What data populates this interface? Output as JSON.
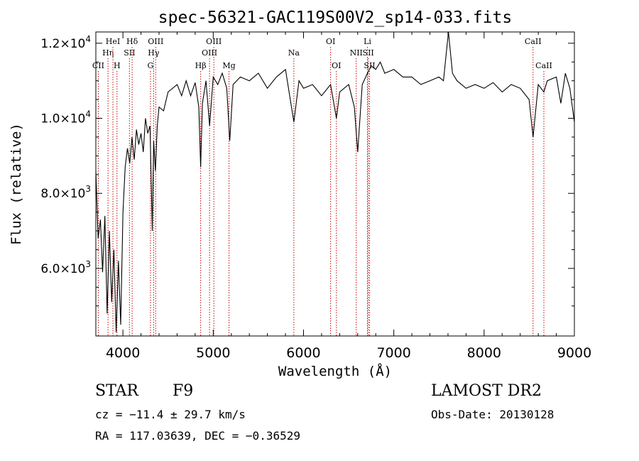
{
  "chart_data": {
    "type": "line",
    "title": "spec-56321-GAC119S00V2_sp14-033.fits",
    "xlabel": "Wavelength (Å)",
    "ylabel": "Flux (relative)",
    "xlim": [
      3700,
      9000
    ],
    "ylim": [
      4200,
      12300
    ],
    "x_ticks": [
      4000,
      5000,
      6000,
      7000,
      8000,
      9000
    ],
    "y_ticks": [
      {
        "value": 6000,
        "mantissa": "6.0",
        "exp": "3"
      },
      {
        "value": 8000,
        "mantissa": "8.0",
        "exp": "3"
      },
      {
        "value": 10000,
        "mantissa": "1.0",
        "exp": "4"
      },
      {
        "value": 12000,
        "mantissa": "1.2",
        "exp": "4"
      }
    ],
    "line_color": "#000000",
    "marker_color": "#c00000",
    "grid": false,
    "spectrum": {
      "x": [
        3700,
        3725,
        3750,
        3775,
        3800,
        3825,
        3850,
        3875,
        3900,
        3925,
        3950,
        3975,
        4000,
        4025,
        4050,
        4075,
        4100,
        4125,
        4150,
        4175,
        4200,
        4225,
        4250,
        4275,
        4300,
        4325,
        4340,
        4360,
        4380,
        4400,
        4450,
        4500,
        4550,
        4600,
        4650,
        4700,
        4750,
        4800,
        4840,
        4861,
        4880,
        4920,
        4960,
        5000,
        5050,
        5100,
        5150,
        5183,
        5220,
        5300,
        5400,
        5500,
        5600,
        5700,
        5800,
        5893,
        5950,
        6000,
        6100,
        6200,
        6300,
        6364,
        6400,
        6500,
        6563,
        6600,
        6650,
        6708,
        6750,
        6800,
        6850,
        6900,
        7000,
        7100,
        7200,
        7300,
        7400,
        7500,
        7550,
        7605,
        7650,
        7700,
        7800,
        7900,
        8000,
        8100,
        8200,
        8300,
        8400,
        8498,
        8542,
        8600,
        8662,
        8700,
        8800,
        8850,
        8900,
        8950,
        9000
      ],
      "y": [
        8600,
        6800,
        7300,
        5900,
        7400,
        4800,
        7000,
        5100,
        6500,
        4300,
        6200,
        4500,
        7500,
        8700,
        9200,
        8800,
        9500,
        8900,
        9700,
        9300,
        9600,
        9100,
        10000,
        9600,
        9800,
        7000,
        9400,
        8600,
        9800,
        10300,
        10200,
        10700,
        10800,
        10900,
        10600,
        11000,
        10600,
        10950,
        10300,
        8700,
        10400,
        11000,
        9800,
        11100,
        10900,
        11200,
        10800,
        9400,
        10900,
        11100,
        11000,
        11200,
        10800,
        11100,
        11300,
        9900,
        11000,
        10800,
        10900,
        10600,
        10900,
        10000,
        10700,
        10900,
        10300,
        9100,
        10900,
        11200,
        11400,
        11300,
        11500,
        11200,
        11300,
        11100,
        11100,
        10900,
        11000,
        11100,
        11000,
        12300,
        11200,
        11000,
        10800,
        10900,
        10800,
        10950,
        10700,
        10900,
        10800,
        10500,
        9500,
        10900,
        10700,
        11000,
        11100,
        10400,
        11200,
        10800,
        9900
      ]
    },
    "line_markers": [
      {
        "label": "CII",
        "x": 3727,
        "row": 3
      },
      {
        "label": "Hη",
        "x": 3835,
        "row": 2
      },
      {
        "label": "HeI",
        "x": 3889,
        "row": 1
      },
      {
        "label": "H",
        "x": 3934,
        "row": 3
      },
      {
        "label": "Hδ",
        "x": 4102,
        "row": 1
      },
      {
        "label": "SII",
        "x": 4072,
        "row": 2
      },
      {
        "label": "OIII",
        "x": 4363,
        "row": 1
      },
      {
        "label": "Hγ",
        "x": 4340,
        "row": 2
      },
      {
        "label": "G",
        "x": 4305,
        "row": 3
      },
      {
        "label": "Hβ",
        "x": 4861,
        "row": 3
      },
      {
        "label": "OIII",
        "x": 5007,
        "row": 1
      },
      {
        "label": "OIII",
        "x": 4959,
        "row": 2
      },
      {
        "label": "Mg",
        "x": 5175,
        "row": 3
      },
      {
        "label": "Na",
        "x": 5893,
        "row": 2
      },
      {
        "label": "OI",
        "x": 6300,
        "row": 1
      },
      {
        "label": "OI",
        "x": 6364,
        "row": 3
      },
      {
        "label": "NII",
        "x": 6584,
        "row": 2
      },
      {
        "label": "Li",
        "x": 6708,
        "row": 1
      },
      {
        "label": "SII",
        "x": 6717,
        "row": 2
      },
      {
        "label": "SII",
        "x": 6731,
        "row": 3
      },
      {
        "label": "CaII",
        "x": 8542,
        "row": 1
      },
      {
        "label": "CaII",
        "x": 8662,
        "row": 3
      }
    ]
  },
  "info": {
    "object_class": "STAR",
    "subclass": "F9",
    "survey": "LAMOST DR2",
    "redshift_line": "cz = −11.4 ± 29.7 km/s",
    "obs_date_line": "Obs-Date: 20130128",
    "coords_line": "RA = 117.03639, DEC =  −0.36529"
  }
}
